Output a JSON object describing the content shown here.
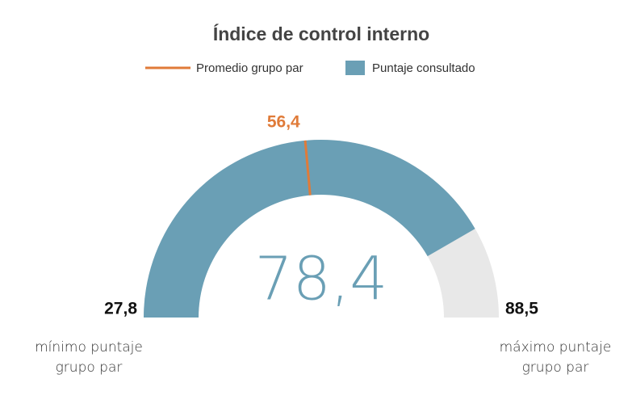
{
  "chart_data": {
    "type": "gauge",
    "title": "Índice de control interno",
    "series": [
      {
        "name": "Promedio grupo par",
        "color": "#e07b39",
        "values": [
          56.4
        ],
        "value_labels": [
          "56,4"
        ]
      },
      {
        "name": "Puntaje consultado",
        "color": "#6a9fb5",
        "values": [
          78.4
        ],
        "value_labels": [
          "78,4"
        ]
      }
    ],
    "ylim": [
      27.8,
      88.5
    ],
    "yticks": [
      {
        "value": 27.8,
        "label": "27,8"
      },
      {
        "value": 88.5,
        "label": "88,5"
      }
    ],
    "track_color": "#e8e8e8",
    "annotations": [
      "mínimo puntaje grupo par",
      "máximo puntaje grupo par"
    ]
  }
}
